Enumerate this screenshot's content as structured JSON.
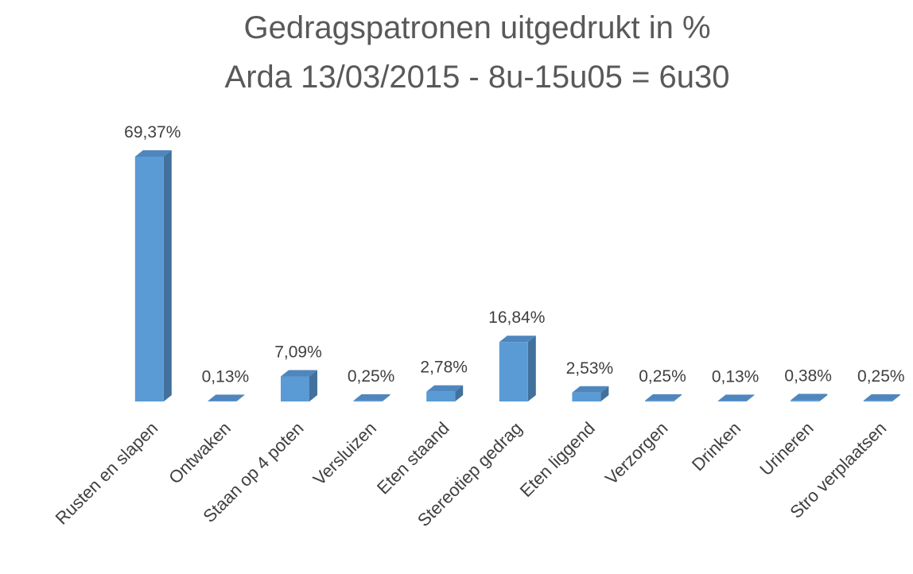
{
  "chart_data": {
    "type": "bar3d",
    "title": "Gedragspatronen uitgedrukt in %",
    "subtitle": "Arda 13/03/2015 - 8u-15u05 = 6u30",
    "categories": [
      "Rusten en slapen",
      "Ontwaken",
      "Staan op 4 poten",
      "Versluizen",
      "Eten staand",
      "Stereotiep gedrag",
      "Eten liggend",
      "Verzorgen",
      "Drinken",
      "Urineren",
      "Stro verplaatsen"
    ],
    "values": [
      69.37,
      0.13,
      7.09,
      0.25,
      2.78,
      16.84,
      2.53,
      0.25,
      0.13,
      0.38,
      0.25
    ],
    "value_labels": [
      "69,37%",
      "0,13%",
      "7,09%",
      "0,25%",
      "2,78%",
      "16,84%",
      "2,53%",
      "0,25%",
      "0,13%",
      "0,38%",
      "0,25%"
    ],
    "color": "#5b9bd5"
  }
}
